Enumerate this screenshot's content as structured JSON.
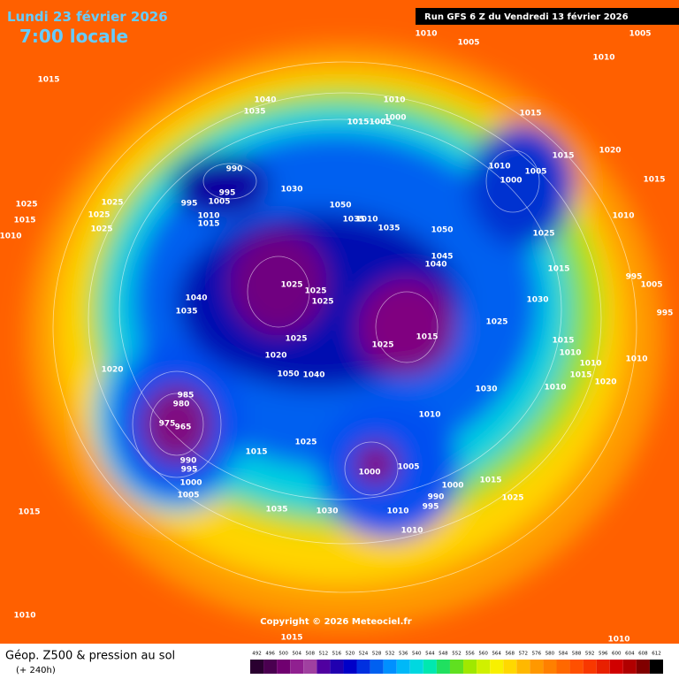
{
  "header": {
    "date": "Lundi 23 février 2026",
    "time": "7:00 locale",
    "run": "Run GFS 6 Z du Vendredi 13 février 2026"
  },
  "map": {
    "pressure_labels": [
      "1010",
      "1005",
      "1005",
      "1010",
      "1015",
      "1040",
      "1035",
      "1010",
      "1015",
      "1005",
      "1000",
      "1015",
      "990",
      "995",
      "1005",
      "995",
      "1010",
      "1015",
      "1030",
      "1050",
      "1035",
      "1010",
      "1035",
      "1050",
      "1010",
      "1005",
      "1000",
      "1015",
      "1020",
      "1015",
      "1010",
      "1025",
      "1045",
      "1040",
      "1015",
      "995",
      "1005",
      "995",
      "1030",
      "1025",
      "1015",
      "1010",
      "1025",
      "1025",
      "1025",
      "1025",
      "1025",
      "1025",
      "1040",
      "1035",
      "1015",
      "1025",
      "1025",
      "1015",
      "1010",
      "1010",
      "1015",
      "1010",
      "1020",
      "1010",
      "1025",
      "1020",
      "1050",
      "1040",
      "1020",
      "985",
      "980",
      "975",
      "965",
      "990",
      "995",
      "1000",
      "1005",
      "1015",
      "1025",
      "1030",
      "1010",
      "1000",
      "1005",
      "1000",
      "1015",
      "990",
      "995",
      "1025",
      "1035",
      "1030",
      "1010",
      "1010",
      "1015",
      "1010",
      "1015",
      "1010"
    ],
    "copyright": "Copyright © 2026 Meteociel.fr"
  },
  "footer": {
    "title": "Géop. Z500 & pression au sol",
    "lead": "(+ 240h)"
  },
  "scale": {
    "labels": [
      492,
      496,
      500,
      504,
      508,
      512,
      516,
      520,
      524,
      528,
      532,
      536,
      540,
      544,
      548,
      552,
      556,
      560,
      564,
      568,
      572,
      576,
      580,
      584,
      588,
      592,
      596,
      600,
      604,
      608,
      612
    ],
    "colors": [
      "#2a0030",
      "#4a0050",
      "#700070",
      "#902090",
      "#a040a0",
      "#5000a0",
      "#2000b0",
      "#0000c8",
      "#0030e0",
      "#0060f0",
      "#0090ff",
      "#00b8f8",
      "#00d8e0",
      "#00e8b0",
      "#20e060",
      "#60e020",
      "#a0e800",
      "#d0f000",
      "#f8f000",
      "#ffd800",
      "#ffb800",
      "#ff9800",
      "#ff8000",
      "#ff6800",
      "#ff5000",
      "#f83800",
      "#e82000",
      "#d00000",
      "#b00000",
      "#800000",
      "#000000"
    ]
  }
}
